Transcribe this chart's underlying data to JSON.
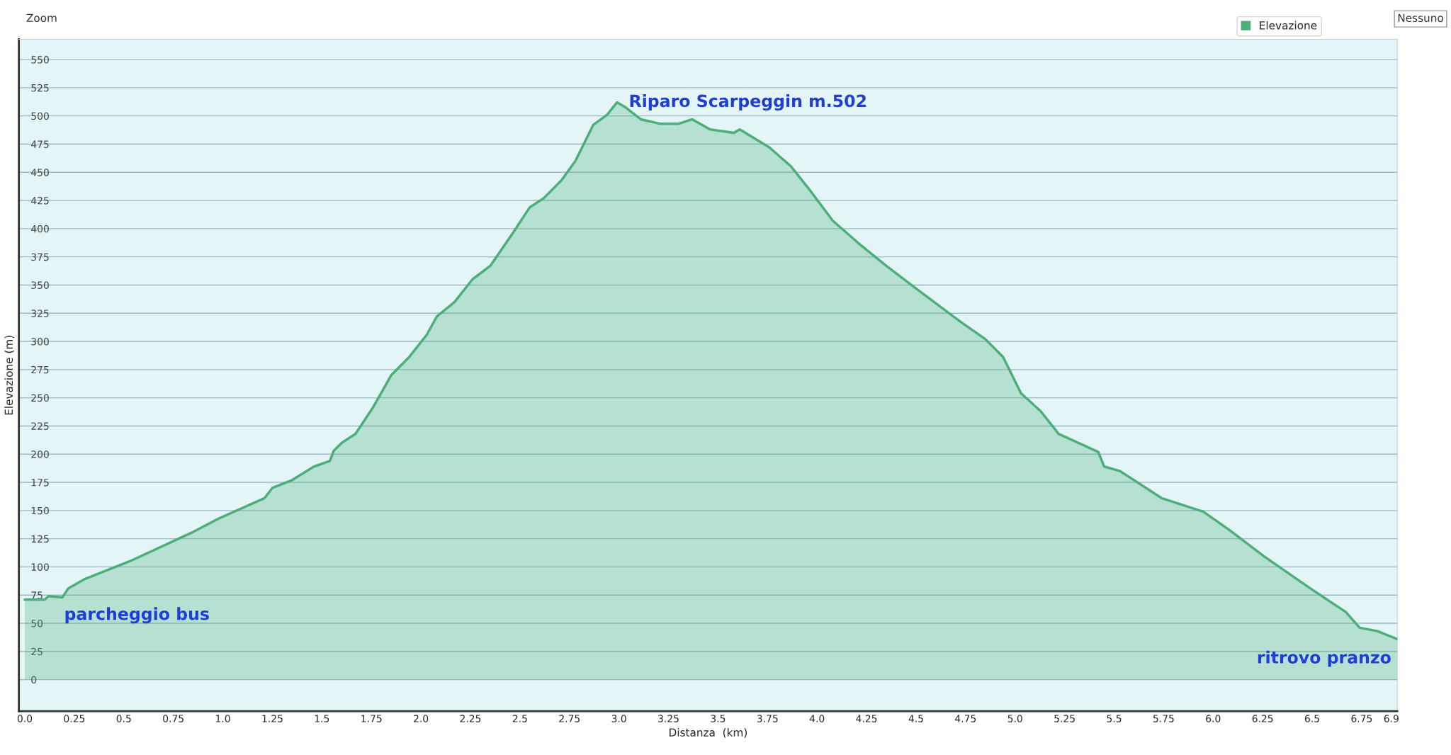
{
  "chart_data": {
    "type": "area",
    "xlabel": "Distanza  (km)",
    "ylabel": "Elevazione (m)",
    "x": [
      0.0,
      0.1,
      0.12,
      0.19,
      0.22,
      0.3,
      0.53,
      0.85,
      0.98,
      1.21,
      1.25,
      1.35,
      1.46,
      1.54,
      1.56,
      1.6,
      1.67,
      1.76,
      1.85,
      1.94,
      2.03,
      2.08,
      2.17,
      2.26,
      2.35,
      2.46,
      2.55,
      2.62,
      2.71,
      2.78,
      2.87,
      2.94,
      2.99,
      3.03,
      3.11,
      3.21,
      3.3,
      3.37,
      3.46,
      3.58,
      3.61,
      3.76,
      3.87,
      3.96,
      4.08,
      4.21,
      4.35,
      4.53,
      4.72,
      4.85,
      4.94,
      5.03,
      5.13,
      5.22,
      5.42,
      5.45,
      5.53,
      5.74,
      5.95,
      6.08,
      6.26,
      6.49,
      6.67,
      6.74,
      6.83,
      6.93
    ],
    "series": [
      {
        "name": "Elevazione",
        "color": "#4caf78",
        "values": [
          71,
          71,
          74,
          73,
          81,
          89,
          105,
          131,
          143,
          161,
          170,
          177,
          189,
          194,
          203,
          210,
          218,
          242,
          270,
          286,
          306,
          322,
          335,
          355,
          367,
          395,
          419,
          427,
          443,
          460,
          492,
          501,
          512,
          508,
          497,
          493,
          493,
          497,
          488,
          485,
          488,
          472,
          455,
          435,
          407,
          387,
          367,
          343,
          318,
          302,
          286,
          254,
          238,
          218,
          202,
          189,
          185,
          161,
          149,
          133,
          109,
          81,
          60,
          46,
          43,
          36
        ]
      }
    ],
    "xlim": [
      -0.03,
      6.93
    ],
    "ylim": [
      -28,
      568
    ],
    "xticks": [
      {
        "value": 0,
        "label": "0.0"
      },
      0.25,
      0.5,
      0.75,
      {
        "value": 1,
        "label": "1.0"
      },
      1.25,
      1.5,
      1.75,
      {
        "value": 2,
        "label": "2.0"
      },
      2.25,
      2.5,
      2.75,
      {
        "value": 3,
        "label": "3.0"
      },
      3.25,
      3.5,
      3.75,
      {
        "value": 4,
        "label": "4.0"
      },
      4.25,
      4.5,
      4.75,
      {
        "value": 5,
        "label": "5.0"
      },
      5.25,
      5.5,
      5.75,
      {
        "value": 6,
        "label": "6.0"
      },
      6.25,
      6.5,
      6.75,
      6.9
    ],
    "yticks": [
      0,
      25,
      50,
      75,
      100,
      125,
      150,
      175,
      200,
      225,
      250,
      275,
      300,
      325,
      350,
      375,
      400,
      425,
      450,
      475,
      500,
      525,
      550
    ],
    "grid": "y",
    "legend": "top right",
    "annotations": [
      {
        "text": "Riparo Scarpeggin m.502",
        "x": 3.0,
        "y": 512
      },
      {
        "text": "parcheggio bus",
        "x": 0.0,
        "y": 71
      },
      {
        "text": "ritrovo pranzo",
        "x": 6.93,
        "y": 36
      },
      "Zoom",
      "Nessuno"
    ]
  }
}
